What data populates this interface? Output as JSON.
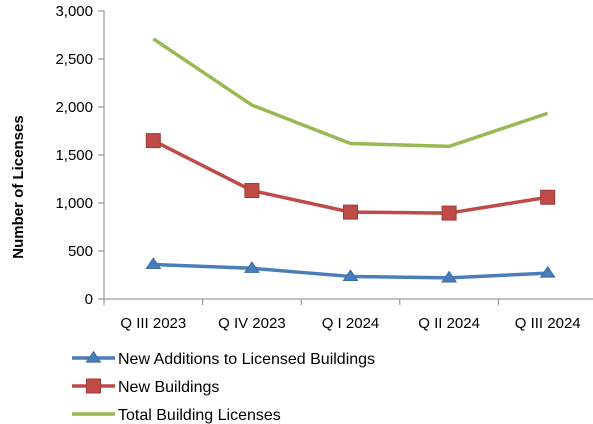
{
  "chart_data": {
    "type": "line",
    "categories": [
      "Q III 2023",
      "Q IV 2023",
      "Q I 2024",
      "Q II 2024",
      "Q III 2024"
    ],
    "series": [
      {
        "name": "New Additions to Licensed Buildings",
        "values": [
          360,
          320,
          235,
          220,
          270
        ],
        "color": "#4a7ebb",
        "marker": "triangle"
      },
      {
        "name": "New Buildings",
        "values": [
          1650,
          1130,
          905,
          895,
          1060
        ],
        "color": "#be4b48",
        "marker": "square"
      },
      {
        "name": "Total Building Licenses",
        "values": [
          2710,
          2020,
          1620,
          1590,
          1935
        ],
        "color": "#98b954",
        "marker": "none"
      }
    ],
    "title": "",
    "xlabel": "",
    "ylabel": "Number of Licenses",
    "ylim": [
      0,
      3000
    ],
    "yticks": [
      "0",
      "500",
      "1,000",
      "1,500",
      "2,000",
      "2,500",
      "3,000"
    ],
    "ytick_values": [
      0,
      500,
      1000,
      1500,
      2000,
      2500,
      3000
    ],
    "grid": false,
    "legend_position": "bottom"
  }
}
